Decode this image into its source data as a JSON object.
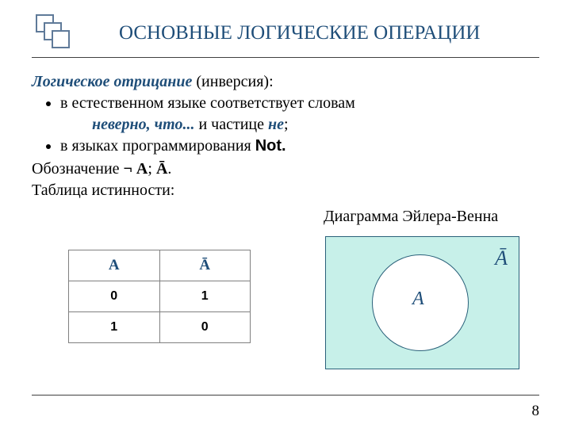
{
  "title": "ОСНОВНЫЕ ЛОГИЧЕСКИЕ ОПЕРАЦИИ",
  "heading": {
    "term": "Логическое отрицание",
    "rest": " (инверсия):"
  },
  "bullet1_a": "в естественном языке соответствует словам",
  "bullet1_indent_a": "неверно, что...",
  "bullet1_indent_b": " и частице ",
  "bullet1_indent_c": "не",
  "bullet1_indent_d": ";",
  "bullet2_a": "в языках программирования ",
  "bullet2_b": "Not.",
  "notation_a": "Обозначение ",
  "notation_b": "¬ А",
  "notation_c": "; ",
  "notation_d": "Ā",
  "notation_e": ".",
  "truth_label": "Таблица истинности:",
  "venn_label": "Диаграмма Эйлера-Венна",
  "table": {
    "headerA": "А",
    "headerAbar": "Ā",
    "rows": [
      {
        "a": "0",
        "nota": "1"
      },
      {
        "a": "1",
        "nota": "0"
      }
    ],
    "border_color": "#808080",
    "header_color": "#1f4e79"
  },
  "venn": {
    "labelA": "A",
    "labelAbar": "Ā",
    "bg_color": "#c7f0e9",
    "border_color": "#2a617a",
    "circle_fill": "#ffffff"
  },
  "colors": {
    "title": "#1f4e79",
    "logo_border": "#5f7a99",
    "hr": "#404040",
    "accent": "#1f4e79"
  },
  "page_number": "8"
}
